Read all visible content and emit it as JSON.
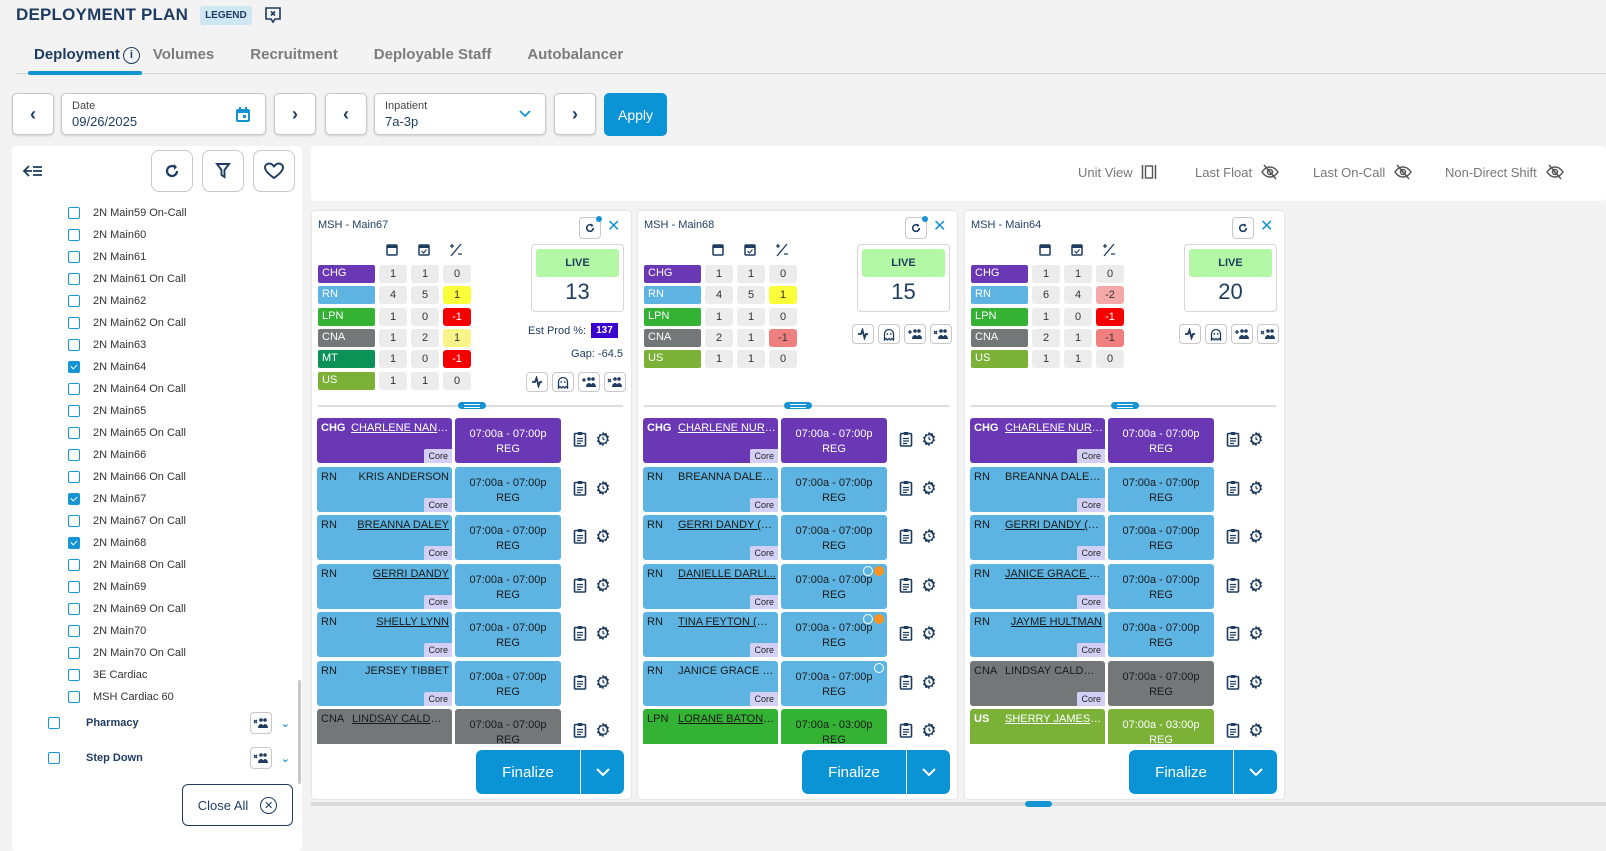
{
  "header": {
    "title": "DEPLOYMENT PLAN",
    "legend_label": "LEGEND",
    "icons": [
      "legend-chat-close-icon"
    ]
  },
  "tabs": [
    {
      "label": "Deployment",
      "active": true,
      "info_glyph": "i"
    },
    {
      "label": "Volumes",
      "active": false
    },
    {
      "label": "Recruitment",
      "active": false
    },
    {
      "label": "Deployable Staff",
      "active": false
    },
    {
      "label": "Autobalancer",
      "active": false
    }
  ],
  "controls": {
    "prev_glyph": "‹",
    "next_glyph": "›",
    "date": {
      "label": "Date",
      "value": "09/26/2025"
    },
    "shift": {
      "label": "Inpatient",
      "value": "7a-3p"
    },
    "apply_label": "Apply"
  },
  "sidebar": {
    "items": [
      {
        "label": "2N Main59 On-Call",
        "checked": false
      },
      {
        "label": "2N Main60",
        "checked": false
      },
      {
        "label": "2N Main61",
        "checked": false
      },
      {
        "label": "2N Main61 On Call",
        "checked": false
      },
      {
        "label": "2N Main62",
        "checked": false
      },
      {
        "label": "2N Main62 On Call",
        "checked": false
      },
      {
        "label": "2N Main63",
        "checked": false
      },
      {
        "label": "2N Main64",
        "checked": true
      },
      {
        "label": "2N Main64 On Call",
        "checked": false
      },
      {
        "label": "2N Main65",
        "checked": false
      },
      {
        "label": "2N Main65 On Call",
        "checked": false
      },
      {
        "label": "2N Main66",
        "checked": false
      },
      {
        "label": "2N Main66 On Call",
        "checked": false
      },
      {
        "label": "2N Main67",
        "checked": true
      },
      {
        "label": "2N Main67 On Call",
        "checked": false
      },
      {
        "label": "2N Main68",
        "checked": true
      },
      {
        "label": "2N Main68 On Call",
        "checked": false
      },
      {
        "label": "2N Main69",
        "checked": false
      },
      {
        "label": "2N Main69 On Call",
        "checked": false
      },
      {
        "label": "2N Main70",
        "checked": false
      },
      {
        "label": "2N Main70 On Call",
        "checked": false
      },
      {
        "label": "3E Cardiac",
        "checked": false
      },
      {
        "label": "MSH Cardiac 60",
        "checked": false
      }
    ],
    "groups": [
      {
        "label": "Pharmacy",
        "checked": false
      },
      {
        "label": "Step Down",
        "checked": false
      }
    ],
    "close_all_label": "Close All",
    "close_glyph": "✕"
  },
  "toggles": [
    {
      "label": "Unit View",
      "icon": "unit-view-icon"
    },
    {
      "label": "Last Float",
      "icon": "eye-off-icon"
    },
    {
      "label": "Last On-Call",
      "icon": "eye-off-icon"
    },
    {
      "label": "Non-Direct Shift",
      "icon": "eye-off-icon"
    }
  ],
  "colors": {
    "CHG": "#6a38b5",
    "RN": "#5db4e2",
    "LPN": "#33b233",
    "CNA": "#747778",
    "MT": "#0b9357",
    "US": "#7ab136",
    "accent": "#0a94d6",
    "diff_yellow": "#fbff3a",
    "diff_lightyellow": "#f9f48a",
    "diff_red": "#f50000",
    "diff_pink": "#f08080",
    "diff_lightpink": "#f5a8a8"
  },
  "cards": [
    {
      "name": "MSH - Main67",
      "refresh_indicator": true,
      "staff": [
        {
          "role": "CHG",
          "scheduled": "1",
          "actual": "1",
          "diff": "0",
          "diff_color": ""
        },
        {
          "role": "RN",
          "scheduled": "4",
          "actual": "5",
          "diff": "1",
          "diff_color": "diff_yellow"
        },
        {
          "role": "LPN",
          "scheduled": "1",
          "actual": "0",
          "diff": "-1",
          "diff_color": "diff_red"
        },
        {
          "role": "CNA",
          "scheduled": "1",
          "actual": "2",
          "diff": "1",
          "diff_color": "diff_lightyellow"
        },
        {
          "role": "MT",
          "scheduled": "1",
          "actual": "0",
          "diff": "-1",
          "diff_color": "diff_red"
        },
        {
          "role": "US",
          "scheduled": "1",
          "actual": "1",
          "diff": "0",
          "diff_color": ""
        }
      ],
      "live_label": "LIVE",
      "live_value": "13",
      "est_prod_label": "Est Prod %:",
      "est_prod_value": "137",
      "gap_text": "Gap: -64.5",
      "assignments": [
        {
          "role": "CHG",
          "name": "CHARLENE NANEM",
          "underline": true,
          "align": "right",
          "tag": "Core",
          "shift": "07:00a - 07:00p",
          "type": "REG",
          "dots": 0
        },
        {
          "role": "RN",
          "name": "KRIS ANDERSON",
          "underline": false,
          "align": "right",
          "tag": "Core",
          "shift": "07:00a - 07:00p",
          "type": "REG",
          "dots": 0
        },
        {
          "role": "RN",
          "name": "BREANNA DALEY",
          "underline": true,
          "align": "right",
          "tag": "Core",
          "shift": "07:00a - 07:00p",
          "type": "REG",
          "dots": 0
        },
        {
          "role": "RN",
          "name": "GERRI DANDY",
          "underline": true,
          "align": "right",
          "tag": "Core",
          "shift": "07:00a - 07:00p",
          "type": "REG",
          "dots": 0
        },
        {
          "role": "RN",
          "name": "SHELLY LYNN",
          "underline": true,
          "align": "right",
          "tag": "Core",
          "shift": "07:00a - 07:00p",
          "type": "REG",
          "dots": 0
        },
        {
          "role": "RN",
          "name": "JERSEY TIBBET",
          "underline": false,
          "align": "right",
          "tag": "Core",
          "shift": "07:00a - 07:00p",
          "type": "REG",
          "dots": 0
        },
        {
          "role": "CNA",
          "name": "LINDSAY CALDWE...",
          "underline": true,
          "align": "left",
          "tag": "",
          "shift": "07:00a - 07:00p",
          "type": "REG",
          "dots": 0
        }
      ],
      "finalize_label": "Finalize"
    },
    {
      "name": "MSH - Main68",
      "refresh_indicator": true,
      "staff": [
        {
          "role": "CHG",
          "scheduled": "1",
          "actual": "1",
          "diff": "0",
          "diff_color": ""
        },
        {
          "role": "RN",
          "scheduled": "4",
          "actual": "5",
          "diff": "1",
          "diff_color": "diff_yellow"
        },
        {
          "role": "LPN",
          "scheduled": "1",
          "actual": "1",
          "diff": "0",
          "diff_color": ""
        },
        {
          "role": "CNA",
          "scheduled": "2",
          "actual": "1",
          "diff": "-1",
          "diff_color": "diff_pink"
        },
        {
          "role": "US",
          "scheduled": "1",
          "actual": "1",
          "diff": "0",
          "diff_color": ""
        }
      ],
      "live_label": "LIVE",
      "live_value": "15",
      "assignments": [
        {
          "role": "CHG",
          "name": "CHARLENE NURS...",
          "underline": true,
          "align": "left",
          "tag": "Core",
          "shift": "07:00a - 07:00p",
          "type": "REG",
          "dots": 0
        },
        {
          "role": "RN",
          "name": "BREANNA DALEY ...",
          "underline": false,
          "align": "left",
          "tag": "Core",
          "shift": "07:00a - 07:00p",
          "type": "REG",
          "dots": 0
        },
        {
          "role": "RN",
          "name": "GERRI DANDY (M...",
          "underline": true,
          "align": "left",
          "tag": "Core",
          "shift": "07:00a - 07:00p",
          "type": "REG",
          "dots": 0
        },
        {
          "role": "RN",
          "name": "DANIELLE DARLI...",
          "underline": true,
          "align": "left",
          "tag": "Core",
          "shift": "07:00a - 07:00p",
          "type": "REG",
          "dots": 2
        },
        {
          "role": "RN",
          "name": "TINA FEYTON (MA...",
          "underline": true,
          "align": "left",
          "tag": "Core",
          "shift": "07:00a - 07:00p",
          "type": "REG",
          "dots": 2
        },
        {
          "role": "RN",
          "name": "JANICE GRACE (M...",
          "underline": false,
          "align": "left",
          "tag": "Core",
          "shift": "07:00a - 07:00p",
          "type": "REG",
          "dots": 1
        },
        {
          "role": "LPN",
          "name": "LORANE BATON (...",
          "underline": true,
          "align": "left",
          "tag": "",
          "shift": "07:00a - 03:00p",
          "type": "REG",
          "dots": 0
        }
      ],
      "finalize_label": "Finalize"
    },
    {
      "name": "MSH - Main64",
      "refresh_indicator": false,
      "staff": [
        {
          "role": "CHG",
          "scheduled": "1",
          "actual": "1",
          "diff": "0",
          "diff_color": ""
        },
        {
          "role": "RN",
          "scheduled": "6",
          "actual": "4",
          "diff": "-2",
          "diff_color": "diff_lightpink"
        },
        {
          "role": "LPN",
          "scheduled": "1",
          "actual": "0",
          "diff": "-1",
          "diff_color": "diff_red"
        },
        {
          "role": "CNA",
          "scheduled": "2",
          "actual": "1",
          "diff": "-1",
          "diff_color": "diff_pink"
        },
        {
          "role": "US",
          "scheduled": "1",
          "actual": "1",
          "diff": "0",
          "diff_color": ""
        }
      ],
      "live_label": "LIVE",
      "live_value": "20",
      "assignments": [
        {
          "role": "CHG",
          "name": "CHARLENE NURS...",
          "underline": true,
          "align": "left",
          "tag": "Core",
          "shift": "07:00a - 07:00p",
          "type": "REG",
          "dots": 0
        },
        {
          "role": "RN",
          "name": "BREANNA DALEY ...",
          "underline": false,
          "align": "left",
          "tag": "Core",
          "shift": "07:00a - 07:00p",
          "type": "REG",
          "dots": 0
        },
        {
          "role": "RN",
          "name": "GERRI DANDY (M...",
          "underline": true,
          "align": "left",
          "tag": "Core",
          "shift": "07:00a - 07:00p",
          "type": "REG",
          "dots": 0
        },
        {
          "role": "RN",
          "name": "JANICE GRACE (M...",
          "underline": true,
          "align": "left",
          "tag": "Core",
          "shift": "07:00a - 07:00p",
          "type": "REG",
          "dots": 0
        },
        {
          "role": "RN",
          "name": "JAYME HULTMAN",
          "underline": true,
          "align": "right",
          "tag": "Core",
          "shift": "07:00a - 07:00p",
          "type": "REG",
          "dots": 0
        },
        {
          "role": "CNA",
          "name": "LINDSAY CALDWE...",
          "underline": false,
          "align": "left",
          "tag": "Core",
          "shift": "07:00a - 07:00p",
          "type": "REG",
          "dots": 0
        },
        {
          "role": "US",
          "name": "SHERRY JAMES (M...",
          "underline": true,
          "align": "left",
          "tag": "",
          "shift": "07:00a - 03:00p",
          "type": "REG",
          "dots": 0
        }
      ],
      "finalize_label": "Finalize"
    }
  ]
}
